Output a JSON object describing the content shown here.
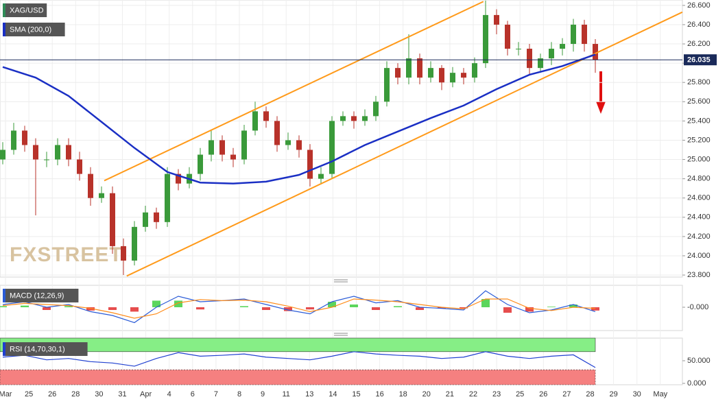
{
  "chart_data": [
    {
      "type": "candlestick",
      "title": "XAG/USD",
      "candles": {
        "open": [
          25.0,
          25.1,
          25.3,
          25.15,
          25.0,
          25.0,
          25.15,
          25.0,
          24.85,
          24.6,
          24.65,
          24.1,
          23.95,
          24.3,
          24.45,
          24.35,
          24.85,
          24.75,
          24.85,
          25.05,
          25.2,
          25.05,
          25.0,
          25.3,
          25.5,
          25.4,
          25.15,
          25.2,
          25.1,
          24.8,
          24.85,
          25.4,
          25.45,
          25.4,
          25.45,
          25.6,
          25.95,
          25.85,
          26.05,
          25.85,
          25.95,
          25.8,
          25.9,
          25.85,
          26.0,
          26.5,
          26.4,
          26.15,
          26.15,
          25.95,
          26.05,
          26.15,
          26.2,
          26.4,
          26.2
        ],
        "high": [
          25.18,
          25.38,
          25.35,
          25.22,
          25.08,
          25.22,
          25.22,
          25.08,
          24.92,
          24.72,
          24.72,
          24.18,
          24.36,
          24.52,
          24.5,
          24.92,
          24.9,
          24.92,
          25.12,
          25.3,
          25.25,
          25.12,
          25.36,
          25.6,
          25.55,
          25.45,
          25.28,
          25.25,
          25.16,
          24.92,
          25.45,
          25.5,
          25.5,
          25.52,
          25.66,
          26.02,
          26.0,
          26.3,
          26.1,
          26.02,
          25.98,
          25.96,
          25.95,
          26.06,
          26.65,
          26.56,
          26.44,
          26.22,
          26.2,
          26.1,
          26.22,
          26.26,
          26.46,
          26.45,
          26.25
        ],
        "low": [
          24.95,
          25.05,
          25.08,
          24.42,
          24.92,
          24.94,
          24.93,
          24.78,
          24.52,
          24.55,
          24.02,
          23.8,
          23.9,
          24.25,
          24.28,
          24.3,
          24.68,
          24.7,
          24.78,
          24.98,
          24.98,
          24.92,
          24.95,
          25.25,
          25.33,
          25.08,
          25.1,
          25.02,
          24.72,
          24.74,
          24.8,
          25.35,
          25.32,
          25.35,
          25.4,
          25.55,
          25.78,
          25.78,
          25.78,
          25.8,
          25.72,
          25.75,
          25.78,
          25.8,
          25.95,
          26.3,
          26.08,
          26.08,
          25.88,
          25.9,
          25.98,
          26.08,
          26.12,
          26.12,
          25.9
        ],
        "close": [
          25.1,
          25.3,
          25.15,
          25.0,
          25.0,
          25.15,
          25.0,
          24.85,
          24.6,
          24.65,
          24.1,
          23.95,
          24.3,
          24.45,
          24.35,
          24.85,
          24.75,
          24.85,
          25.05,
          25.2,
          25.05,
          25.0,
          25.3,
          25.5,
          25.4,
          25.15,
          25.2,
          25.1,
          24.8,
          24.85,
          25.4,
          25.45,
          25.4,
          25.45,
          25.6,
          25.95,
          25.85,
          26.05,
          25.85,
          25.95,
          25.8,
          25.9,
          25.85,
          26.0,
          26.5,
          26.4,
          26.15,
          26.15,
          25.95,
          26.05,
          26.15,
          26.2,
          26.4,
          26.2,
          26.035
        ],
        "up_color": "#3a9a3a",
        "down_color": "#b8322a"
      },
      "series": [
        {
          "name": "SMA (200,0)",
          "color": "#1a2fc4",
          "x": [
            0,
            3,
            6,
            9,
            12,
            15,
            18,
            21,
            24,
            27,
            30,
            33,
            36,
            39,
            42,
            45,
            48,
            51,
            54
          ],
          "values": [
            25.96,
            25.85,
            25.66,
            25.39,
            25.12,
            24.87,
            24.76,
            24.75,
            24.77,
            24.84,
            24.98,
            25.15,
            25.29,
            25.43,
            25.56,
            25.73,
            25.88,
            25.97,
            26.09
          ]
        }
      ],
      "trend_lines": [
        {
          "color": "#ff9a1a",
          "x": [
            9.25,
            43.8
          ],
          "values": [
            24.78,
            26.64
          ]
        },
        {
          "color": "#ff9a1a",
          "x": [
            11.3,
            61.93
          ],
          "values": [
            23.79,
            26.53
          ]
        }
      ],
      "last_price": 26.035,
      "ylim": [
        23.779,
        26.656
      ],
      "yticks": [
        {
          "value": 23.8,
          "label": "23.800"
        },
        {
          "value": 24.0,
          "label": "24.000"
        },
        {
          "value": 24.2,
          "label": "24.200"
        },
        {
          "value": 24.4,
          "label": "24.400"
        },
        {
          "value": 24.6,
          "label": "24.600"
        },
        {
          "value": 24.8,
          "label": "24.800"
        },
        {
          "value": 25.0,
          "label": "25.000"
        },
        {
          "value": 25.2,
          "label": "25.200"
        },
        {
          "value": 25.4,
          "label": "25.400"
        },
        {
          "value": 25.6,
          "label": "25.600"
        },
        {
          "value": 25.8,
          "label": "25.800"
        },
        {
          "value": 26.0,
          "label": "26.000"
        },
        {
          "value": 26.2,
          "label": "26.200"
        },
        {
          "value": 26.4,
          "label": "26.400"
        },
        {
          "value": 26.6,
          "label": "26.600"
        }
      ],
      "grid": true,
      "watermark": "FXSTREET",
      "date_labels": [
        "Mar",
        "25",
        "26",
        "28",
        "30",
        "31",
        "Apr",
        "4",
        "6",
        "7",
        "8",
        "9",
        "11",
        "13",
        "14",
        "15",
        "16",
        "18",
        "20",
        "21",
        "22",
        "23",
        "25",
        "26",
        "27",
        "28",
        "29",
        "30",
        "May"
      ]
    },
    {
      "type": "macd",
      "title": "MACD (12,26,9)",
      "series": [
        {
          "color": "#2a5bd7",
          "values": [
            0.05,
            0.1,
            0.0,
            0.05,
            -0.08,
            -0.15,
            -0.28,
            0.0,
            0.2,
            0.1,
            0.12,
            0.15,
            0.05,
            -0.05,
            -0.12,
            0.1,
            0.2,
            0.08,
            0.12,
            0.0,
            -0.02,
            -0.05,
            0.3,
            0.05,
            -0.1,
            -0.05,
            0.05,
            -0.08
          ]
        },
        {
          "color": "#ff8c1a",
          "values": [
            0.03,
            0.07,
            0.05,
            0.03,
            -0.02,
            -0.1,
            -0.2,
            -0.12,
            0.08,
            0.14,
            0.12,
            0.13,
            0.1,
            0.02,
            -0.08,
            0.0,
            0.15,
            0.13,
            0.1,
            0.05,
            0.0,
            -0.03,
            0.15,
            0.15,
            -0.02,
            -0.06,
            0.0,
            -0.02
          ]
        }
      ],
      "histogram": {
        "values": [
          0.02,
          0.03,
          -0.05,
          0.02,
          -0.06,
          -0.05,
          -0.08,
          0.12,
          0.12,
          -0.04,
          0.0,
          0.02,
          -0.05,
          -0.07,
          -0.04,
          0.1,
          0.05,
          -0.05,
          0.02,
          -0.05,
          -0.02,
          -0.02,
          0.15,
          -0.1,
          -0.08,
          0.01,
          0.05,
          -0.06
        ],
        "up_color": "#33cc33",
        "down_color": "#e02020"
      },
      "ylim": [
        -0.4,
        0.4
      ],
      "yticks": [
        {
          "value": 0,
          "label": "-0.000"
        }
      ]
    },
    {
      "type": "rsi",
      "title": "RSI (14,70,30,1)",
      "color": "#1f3fd0",
      "values": [
        58,
        62,
        52,
        55,
        48,
        45,
        38,
        55,
        68,
        60,
        62,
        65,
        58,
        55,
        52,
        60,
        70,
        65,
        62,
        60,
        55,
        58,
        70,
        60,
        55,
        60,
        63,
        35
      ],
      "upper_band": 70,
      "lower_band": 30,
      "ylim": [
        0,
        100
      ],
      "yticks": [
        {
          "value": 50,
          "label": "50.000"
        },
        {
          "value": 0,
          "label": "0.000"
        }
      ]
    }
  ]
}
